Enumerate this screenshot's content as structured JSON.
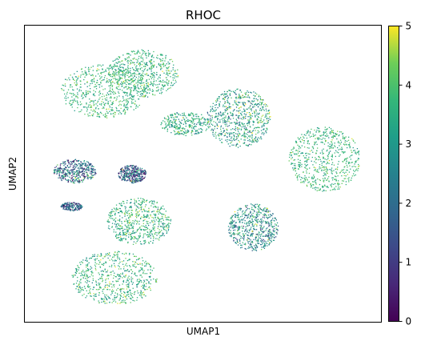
{
  "chart_data": {
    "type": "scatter",
    "title": "RHOC",
    "xlabel": "UMAP1",
    "ylabel": "UMAP2",
    "xticks_shown": false,
    "yticks_shown": false,
    "grid": false,
    "colormap": "viridis",
    "colorbar": {
      "min": 0,
      "max": 5,
      "ticks": [
        0,
        1,
        2,
        3,
        4,
        5
      ],
      "tick_labels": [
        "0",
        "1",
        "2",
        "3",
        "4",
        "5"
      ]
    },
    "clusters": [
      {
        "cx": 0.22,
        "cy": 0.78,
        "rx": 0.12,
        "ry": 0.09,
        "typical_value": 3.7,
        "spread": 0.8,
        "density": 1.0
      },
      {
        "cx": 0.33,
        "cy": 0.84,
        "rx": 0.1,
        "ry": 0.08,
        "typical_value": 3.6,
        "spread": 0.9,
        "density": 1.0
      },
      {
        "cx": 0.45,
        "cy": 0.67,
        "rx": 0.07,
        "ry": 0.04,
        "typical_value": 3.4,
        "spread": 1.0,
        "density": 0.5
      },
      {
        "cx": 0.6,
        "cy": 0.69,
        "rx": 0.09,
        "ry": 0.1,
        "typical_value": 3.2,
        "spread": 1.4,
        "density": 1.2
      },
      {
        "cx": 0.84,
        "cy": 0.55,
        "rx": 0.1,
        "ry": 0.11,
        "typical_value": 3.7,
        "spread": 0.8,
        "density": 1.1
      },
      {
        "cx": 0.14,
        "cy": 0.51,
        "rx": 0.06,
        "ry": 0.04,
        "typical_value": 2.0,
        "spread": 2.0,
        "density": 0.7
      },
      {
        "cx": 0.3,
        "cy": 0.5,
        "rx": 0.04,
        "ry": 0.03,
        "typical_value": 1.6,
        "spread": 2.0,
        "density": 0.6
      },
      {
        "cx": 0.13,
        "cy": 0.39,
        "rx": 0.03,
        "ry": 0.015,
        "typical_value": 1.8,
        "spread": 1.5,
        "density": 0.3
      },
      {
        "cx": 0.32,
        "cy": 0.34,
        "rx": 0.09,
        "ry": 0.08,
        "typical_value": 3.6,
        "spread": 1.0,
        "density": 1.0
      },
      {
        "cx": 0.64,
        "cy": 0.32,
        "rx": 0.07,
        "ry": 0.08,
        "typical_value": 2.7,
        "spread": 1.5,
        "density": 1.0
      },
      {
        "cx": 0.25,
        "cy": 0.15,
        "rx": 0.12,
        "ry": 0.09,
        "typical_value": 3.6,
        "spread": 1.0,
        "density": 1.1
      }
    ]
  }
}
